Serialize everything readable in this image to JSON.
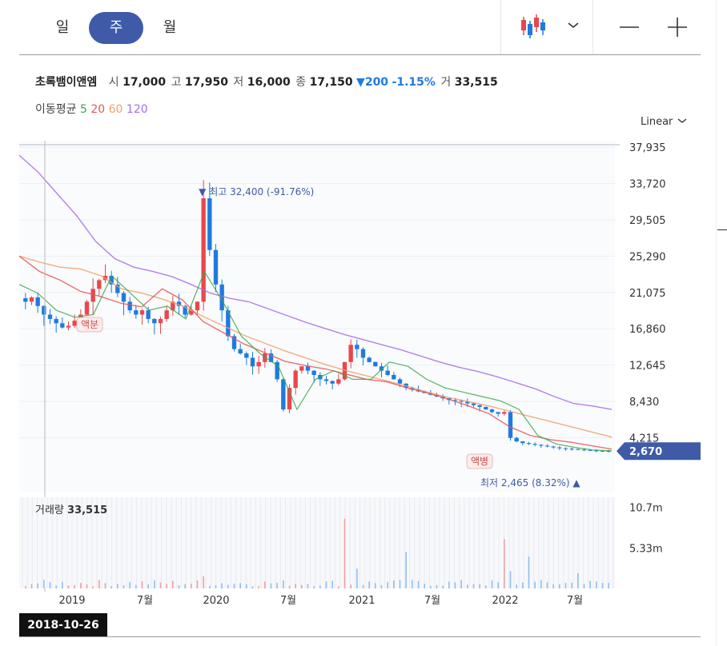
{
  "toolbar": {
    "periods": [
      "일",
      "주",
      "월"
    ],
    "active_period": "주",
    "chart_type_icon": "candlestick-icon",
    "dropdown_icon": "chevron-down-icon",
    "zoom_out_icon": "minus-icon",
    "zoom_in_icon": "plus-icon"
  },
  "quote": {
    "name": "초록뱀이앤엠",
    "open_label": "시",
    "open": "17,000",
    "high_label": "고",
    "high": "17,950",
    "low_label": "저",
    "low": "16,000",
    "close_label": "종",
    "close": "17,150",
    "change_arrow": "▼",
    "change": "200",
    "change_pct": "-1.15%",
    "volume_label": "거",
    "volume": "33,515"
  },
  "moving_average": {
    "label": "이동평균",
    "periods": [
      {
        "value": "5",
        "color": "#3aa64a"
      },
      {
        "value": "20",
        "color": "#e4575a"
      },
      {
        "value": "60",
        "color": "#f0a06a"
      },
      {
        "value": "120",
        "color": "#a76ce8"
      }
    ]
  },
  "scale_label": "Linear",
  "colors": {
    "up": "#e8474c",
    "down": "#1f7ae0",
    "accent": "#3f5ba8"
  },
  "chart_data": {
    "type": "candlestick",
    "y_ticks": [
      "37,935",
      "33,720",
      "29,505",
      "25,290",
      "21,075",
      "16,860",
      "12,645",
      "8,430",
      "4,215"
    ],
    "ylim": [
      0,
      37935
    ],
    "x_ticks": [
      "2019",
      "7월",
      "2020",
      "7월",
      "2021",
      "7월",
      "2022",
      "7월"
    ],
    "current_price": "2,670",
    "current_value": 2670,
    "high_annotation": {
      "label": "최고",
      "value": "32,400",
      "pct": "(-91.76%)",
      "arrow": "▼"
    },
    "low_annotation": {
      "label": "최저",
      "value": "2,465",
      "pct": "(8.32%)",
      "arrow": "▲"
    },
    "events": [
      "액분",
      "액병"
    ],
    "close_series": [
      20000,
      20500,
      19500,
      18500,
      18000,
      17500,
      17000,
      17200,
      17800,
      18500,
      20000,
      21500,
      22500,
      23000,
      22000,
      21000,
      20000,
      19000,
      18500,
      19000,
      18000,
      17500,
      18000,
      19000,
      20000,
      19500,
      18500,
      19000,
      20000,
      32000,
      26000,
      22000,
      19000,
      16000,
      14500,
      14000,
      13500,
      12500,
      13000,
      14000,
      13000,
      11000,
      7500,
      10000,
      12000,
      12500,
      12000,
      11500,
      11000,
      10800,
      10500,
      11000,
      13000,
      15000,
      14500,
      13500,
      13000,
      12500,
      12000,
      11500,
      11000,
      10500,
      10000,
      9800,
      9600,
      9400,
      9200,
      9000,
      8800,
      8600,
      8500,
      8400,
      8200,
      8000,
      7800,
      7500,
      7200,
      7000,
      7200,
      4200,
      3800,
      3600,
      3500,
      3400,
      3300,
      3200,
      3100,
      3000,
      2950,
      2900,
      2850,
      2800,
      2750,
      2700,
      2680,
      2670
    ],
    "ma_series": {
      "ma120": [
        37000,
        35000,
        32500,
        30000,
        27000,
        25000,
        24000,
        23500,
        22900,
        22000,
        21000,
        20400,
        20000,
        19200,
        18400,
        17600,
        16900,
        16200,
        15600,
        15000,
        14400,
        13700,
        13000,
        12400,
        11900,
        11300,
        10600,
        9900,
        9000,
        8200,
        7900,
        7500
      ],
      "ma60": [
        25290,
        24600,
        24000,
        23800,
        23000,
        21500,
        21000,
        20300,
        19500,
        18300,
        17200,
        16100,
        15200,
        14300,
        13500,
        12700,
        12000,
        11400,
        10800,
        10200,
        9500,
        8900,
        8400,
        7900,
        7300,
        6700,
        6100,
        5500,
        4900,
        4300
      ],
      "ma20": [
        25290,
        23500,
        22500,
        21200,
        20600,
        19800,
        19400,
        21500,
        20200,
        17700,
        16400,
        15100,
        14100,
        13100,
        12600,
        12200,
        11600,
        11000,
        10700,
        10000,
        9400,
        8700,
        7900,
        7000,
        5500,
        4500,
        4000,
        3700,
        3300,
        2900
      ],
      "ma5": [
        22000,
        21000,
        19000,
        18200,
        18500,
        23000,
        21000,
        19000,
        19500,
        18000,
        23500,
        20000,
        16000,
        14000,
        12500,
        7500,
        11000,
        12000,
        11000,
        11000,
        13000,
        12500,
        11000,
        10000,
        9500,
        9000,
        8500,
        7500,
        4500,
        3500,
        3100,
        2800,
        2700
      ]
    },
    "volume": {
      "label": "거래량",
      "value": "33,515",
      "y_ticks": [
        "10.7m",
        "5.33m"
      ],
      "ylim": [
        0,
        12000000
      ]
    }
  },
  "footer": {
    "cursor_date": "2018-10-26"
  }
}
